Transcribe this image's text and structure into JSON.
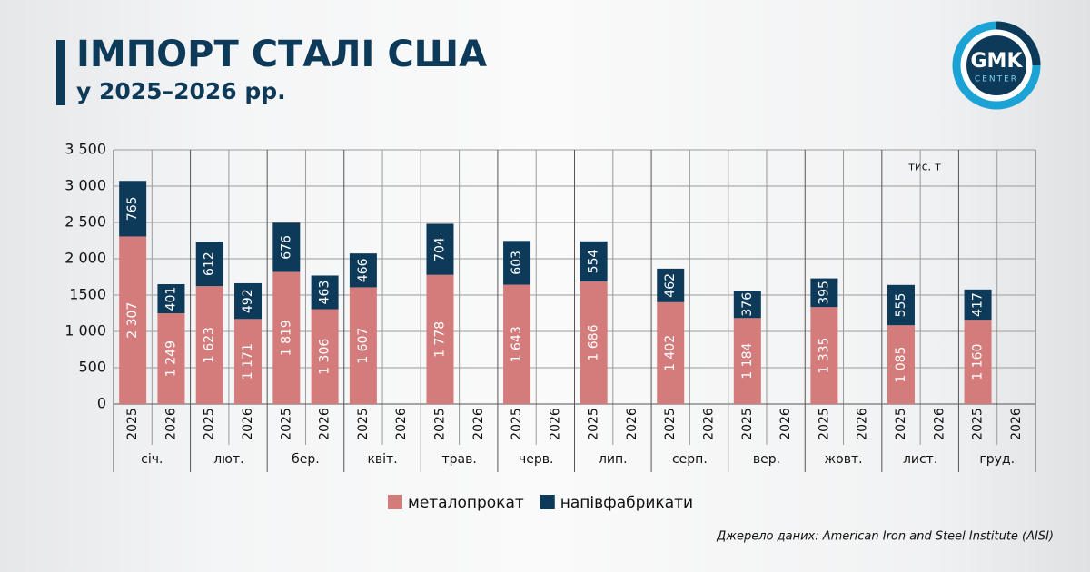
{
  "chart_data": {
    "type": "stacked_bar",
    "title": "ІМПОРТ СТАЛІ США",
    "subtitle": "у 2025–2026 рр.",
    "unit": "тис. т",
    "source": "Джерело даних: American Iron and Steel Institute (AISI)",
    "category_groups": [
      "січ.",
      "лют.",
      "бер.",
      "квіт.",
      "трав.",
      "черв.",
      "лип.",
      "серп.",
      "вер.",
      "жовт.",
      "лист.",
      "груд."
    ],
    "categories": [
      "2025",
      "2026",
      "2025",
      "2026",
      "2025",
      "2026",
      "2025",
      "2026",
      "2025",
      "2026",
      "2025",
      "2026",
      "2025",
      "2026",
      "2025",
      "2026",
      "2025",
      "2026",
      "2025",
      "2026",
      "2025",
      "2026",
      "2025",
      "2026"
    ],
    "series": [
      {
        "name": "металопрокат",
        "color": "#d47b7b",
        "values": [
          2307,
          1249,
          1623,
          1171,
          1819,
          1306,
          1607,
          null,
          1778,
          null,
          1643,
          null,
          1686,
          null,
          1402,
          null,
          1184,
          null,
          1335,
          null,
          1085,
          null,
          1160,
          null
        ],
        "value_labels": [
          "2 307",
          "1 249",
          "1 623",
          "1 171",
          "1 819",
          "1 306",
          "1 607",
          null,
          "1 778",
          null,
          "1 643",
          null,
          "1 686",
          null,
          "1 402",
          null,
          "1 184",
          null,
          "1 335",
          null,
          "1 085",
          null,
          "1 160",
          null
        ]
      },
      {
        "name": "напівфабрикати",
        "color": "#0e3a5a",
        "values": [
          765,
          401,
          612,
          492,
          676,
          463,
          466,
          null,
          704,
          null,
          603,
          null,
          554,
          null,
          462,
          null,
          376,
          null,
          395,
          null,
          555,
          null,
          417,
          null
        ]
      }
    ],
    "ylim": [
      0,
      3500
    ],
    "yticks": [
      0,
      500,
      {
        "value": 1000,
        "label": "1 000"
      },
      {
        "value": 1500,
        "label": "1500"
      },
      {
        "value": 2000,
        "label": "2 000"
      },
      {
        "value": 2500,
        "label": "2 500"
      },
      {
        "value": 3000,
        "label": "3 000"
      },
      {
        "value": 3500,
        "label": "3 500"
      }
    ],
    "grid": true
  },
  "logo": {
    "name": "GMK",
    "sub": "CENTER"
  }
}
